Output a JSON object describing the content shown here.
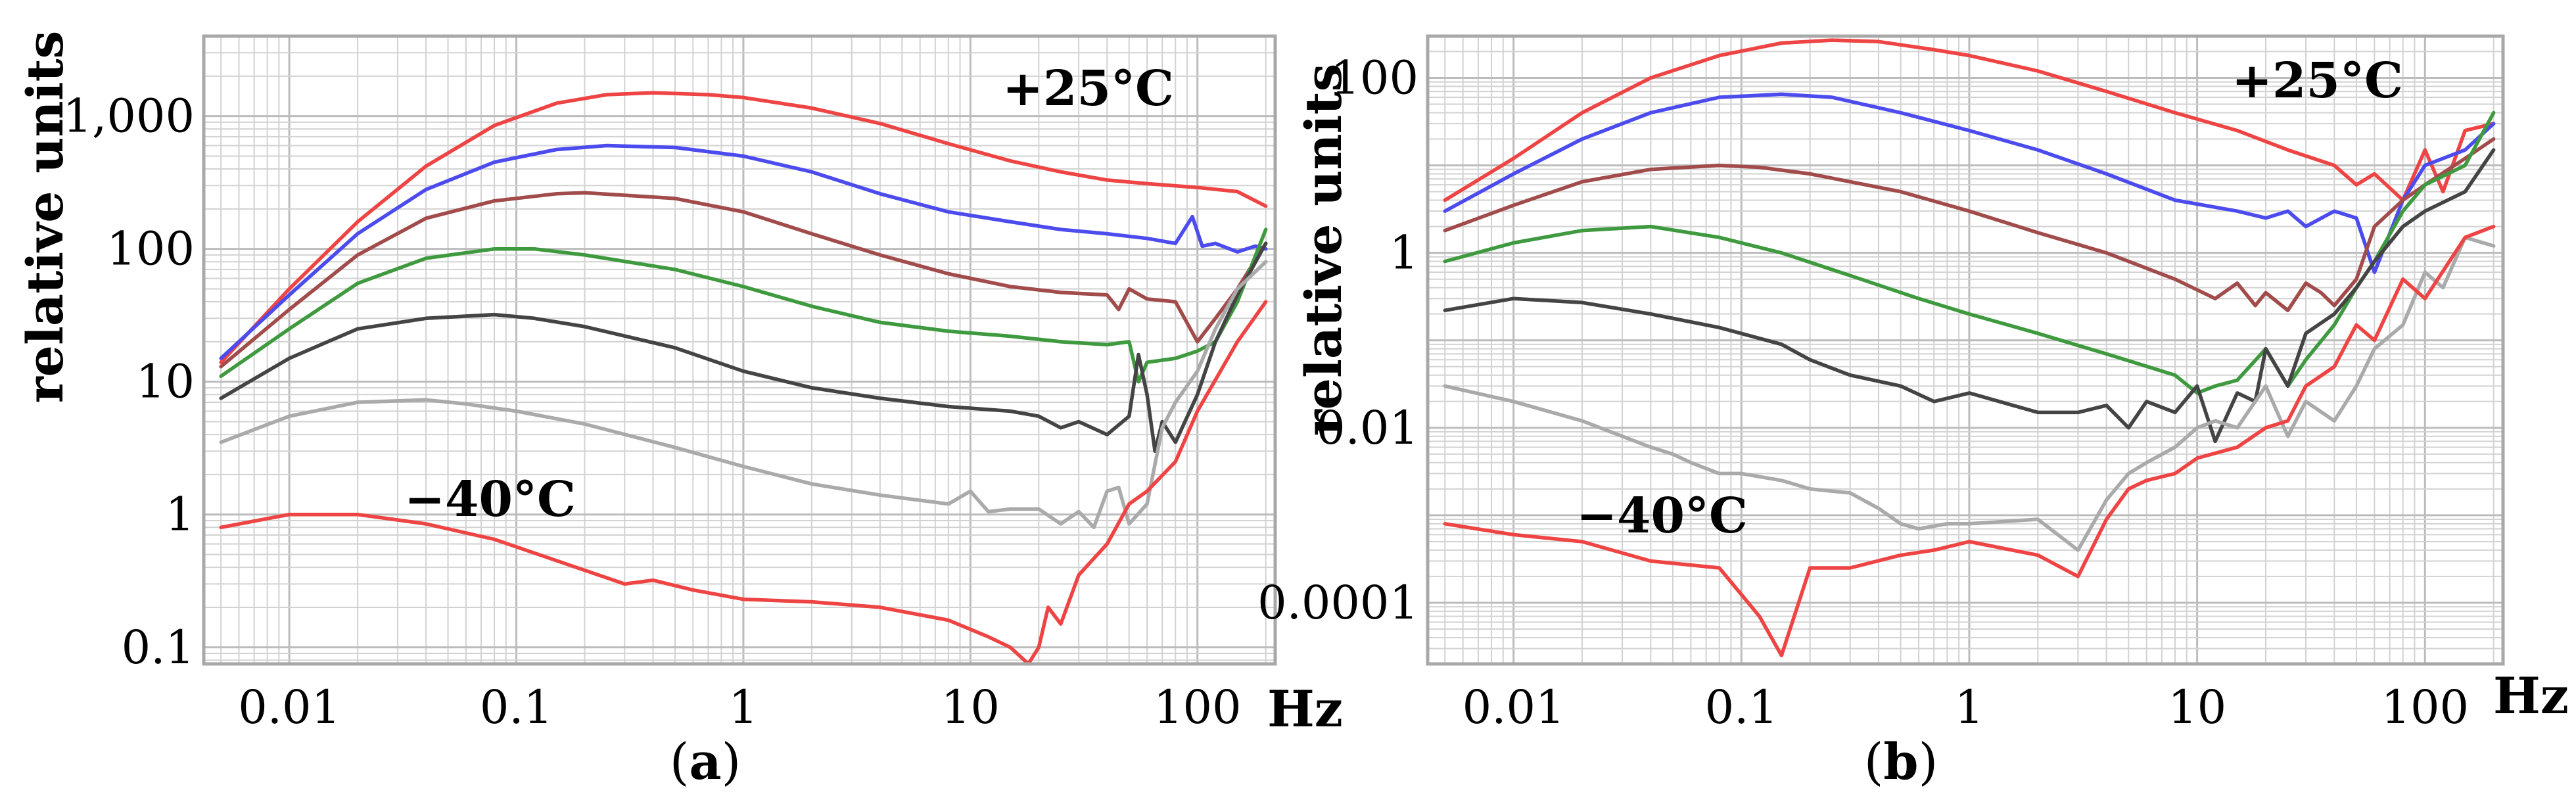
{
  "chart_data": [
    {
      "panel": "(a)",
      "panel_letter": "a",
      "type": "line",
      "xscale": "log",
      "yscale": "log",
      "xlim": [
        0.0042,
        220
      ],
      "ylim": [
        0.075,
        4000
      ],
      "ylabel": "relative units",
      "x_unit_label": "Hz",
      "xticks": [
        0.01,
        0.1,
        1,
        10,
        100
      ],
      "xtick_labels": [
        "0.01",
        "0.1",
        "1",
        "10",
        "100"
      ],
      "yticks": [
        0.1,
        1,
        10,
        100,
        1000
      ],
      "ytick_labels": [
        "0.1",
        "1",
        "10",
        "100",
        "1,000"
      ],
      "grid": true,
      "annotations": [
        {
          "text": "+25°C",
          "x": 35,
          "y": 1600
        },
        {
          "text": "−40°C",
          "x": 0.027,
          "y": 2.0
        }
      ],
      "series": [
        {
          "color": "#ee4444",
          "x": [
            0.005,
            0.01,
            0.02,
            0.04,
            0.08,
            0.15,
            0.25,
            0.4,
            0.7,
            1,
            2,
            4,
            8,
            15,
            25,
            40,
            60,
            100,
            150,
            200
          ],
          "y": [
            14,
            50,
            160,
            420,
            850,
            1250,
            1450,
            1500,
            1450,
            1380,
            1150,
            880,
            620,
            460,
            380,
            330,
            310,
            290,
            270,
            210
          ]
        },
        {
          "color": "#4b4bee",
          "x": [
            0.005,
            0.01,
            0.02,
            0.04,
            0.08,
            0.15,
            0.25,
            0.5,
            1,
            2,
            4,
            8,
            15,
            25,
            40,
            60,
            80,
            95,
            105,
            120,
            150,
            180,
            200
          ],
          "y": [
            15,
            45,
            130,
            280,
            450,
            560,
            600,
            580,
            500,
            380,
            260,
            190,
            160,
            140,
            130,
            120,
            110,
            175,
            105,
            110,
            95,
            105,
            100
          ]
        },
        {
          "color": "#a14b4b",
          "x": [
            0.005,
            0.01,
            0.02,
            0.04,
            0.08,
            0.15,
            0.2,
            0.5,
            1,
            2,
            4,
            8,
            15,
            25,
            40,
            45,
            50,
            60,
            80,
            100,
            120,
            150,
            200
          ],
          "y": [
            13,
            35,
            90,
            170,
            230,
            260,
            265,
            240,
            190,
            130,
            90,
            65,
            52,
            47,
            45,
            35,
            50,
            42,
            40,
            20,
            30,
            50,
            110
          ]
        },
        {
          "color": "#3f9a3f",
          "x": [
            0.005,
            0.01,
            0.02,
            0.04,
            0.08,
            0.12,
            0.2,
            0.5,
            1,
            2,
            4,
            8,
            15,
            25,
            40,
            50,
            55,
            60,
            80,
            100,
            120,
            150,
            200
          ],
          "y": [
            11,
            25,
            55,
            85,
            100,
            100,
            90,
            70,
            52,
            37,
            28,
            24,
            22,
            20,
            19,
            20,
            10,
            14,
            15,
            17,
            20,
            40,
            140
          ]
        },
        {
          "color": "#444444",
          "x": [
            0.005,
            0.01,
            0.02,
            0.04,
            0.08,
            0.12,
            0.2,
            0.5,
            1,
            2,
            4,
            8,
            15,
            20,
            25,
            30,
            40,
            50,
            55,
            60,
            65,
            70,
            80,
            100,
            120,
            150,
            200
          ],
          "y": [
            7.5,
            15,
            25,
            30,
            32,
            30,
            26,
            18,
            12,
            9,
            7.5,
            6.5,
            6,
            5.5,
            4.5,
            5,
            4,
            5.5,
            16,
            8,
            3,
            5,
            3.5,
            8,
            20,
            45,
            110
          ]
        },
        {
          "color": "#aaaaaa",
          "x": [
            0.005,
            0.01,
            0.02,
            0.04,
            0.06,
            0.1,
            0.2,
            0.5,
            1,
            2,
            4,
            8,
            10,
            12,
            15,
            20,
            25,
            30,
            35,
            40,
            45,
            50,
            60,
            70,
            80,
            100,
            120,
            150,
            200
          ],
          "y": [
            3.5,
            5.5,
            7,
            7.3,
            6.8,
            6,
            4.8,
            3.2,
            2.3,
            1.7,
            1.4,
            1.2,
            1.5,
            1.05,
            1.1,
            1.1,
            0.85,
            1.05,
            0.8,
            1.5,
            1.6,
            0.85,
            1.2,
            4.5,
            7,
            12,
            25,
            50,
            80
          ]
        },
        {
          "color": "#ee4444",
          "x": [
            0.005,
            0.01,
            0.02,
            0.04,
            0.08,
            0.15,
            0.3,
            0.4,
            0.6,
            1,
            2,
            4,
            8,
            12,
            15,
            18,
            20,
            22,
            25,
            30,
            40,
            50,
            60,
            80,
            100,
            150,
            200
          ],
          "y": [
            0.8,
            1.0,
            1.0,
            0.85,
            0.65,
            0.45,
            0.3,
            0.32,
            0.27,
            0.23,
            0.22,
            0.2,
            0.16,
            0.12,
            0.1,
            0.075,
            0.1,
            0.2,
            0.15,
            0.35,
            0.6,
            1.2,
            1.5,
            2.5,
            6,
            20,
            40
          ]
        }
      ]
    },
    {
      "panel": "(b)",
      "panel_letter": "b",
      "type": "line",
      "xscale": "log",
      "yscale": "log",
      "xlim": [
        0.0042,
        220
      ],
      "ylim": [
        2e-05,
        300
      ],
      "ylabel": "relative units",
      "x_unit_label": "Hz",
      "xticks": [
        0.01,
        0.1,
        1,
        10,
        100
      ],
      "xtick_labels": [
        "0.01",
        "0.1",
        "1",
        "10",
        "100"
      ],
      "yticks": [
        0.0001,
        0.01,
        1,
        100
      ],
      "ytick_labels": [
        "0.0001",
        "0.01",
        "1",
        "100"
      ],
      "grid": true,
      "annotations": [
        {
          "text": "+25°C",
          "x": 32,
          "y": 90
        },
        {
          "text": "−40°C",
          "x": 0.025,
          "y": 0.0011
        }
      ],
      "series": [
        {
          "color": "#ee4444",
          "x": [
            0.005,
            0.01,
            0.02,
            0.04,
            0.08,
            0.15,
            0.25,
            0.4,
            0.7,
            1,
            2,
            4,
            8,
            15,
            25,
            40,
            50,
            60,
            80,
            100,
            120,
            150,
            200
          ],
          "y": [
            4,
            12,
            40,
            100,
            180,
            250,
            270,
            260,
            210,
            180,
            120,
            70,
            40,
            25,
            15,
            10,
            6,
            8,
            4,
            15,
            5,
            25,
            30
          ]
        },
        {
          "color": "#4b4bee",
          "x": [
            0.005,
            0.01,
            0.02,
            0.04,
            0.08,
            0.15,
            0.25,
            0.5,
            1,
            2,
            4,
            8,
            15,
            20,
            25,
            30,
            40,
            50,
            60,
            80,
            100,
            150,
            200
          ],
          "y": [
            3,
            8,
            20,
            40,
            60,
            65,
            60,
            40,
            25,
            15,
            8,
            4,
            3,
            2.5,
            3,
            2,
            3,
            2.5,
            0.6,
            4,
            10,
            15,
            30
          ]
        },
        {
          "color": "#a14b4b",
          "x": [
            0.005,
            0.01,
            0.02,
            0.04,
            0.08,
            0.12,
            0.2,
            0.5,
            1,
            2,
            4,
            8,
            12,
            15,
            18,
            20,
            25,
            30,
            35,
            40,
            50,
            60,
            80,
            100,
            150,
            200
          ],
          "y": [
            1.8,
            3.5,
            6.5,
            9,
            10,
            9.5,
            8,
            5,
            3,
            1.7,
            1,
            0.5,
            0.3,
            0.45,
            0.25,
            0.35,
            0.22,
            0.45,
            0.35,
            0.25,
            0.5,
            2,
            4,
            6,
            12,
            20
          ]
        },
        {
          "color": "#3f9a3f",
          "x": [
            0.005,
            0.01,
            0.02,
            0.04,
            0.08,
            0.15,
            0.3,
            0.6,
            1,
            2,
            4,
            8,
            10,
            12,
            15,
            20,
            25,
            30,
            40,
            50,
            60,
            80,
            100,
            150,
            200
          ],
          "y": [
            0.8,
            1.3,
            1.8,
            2,
            1.5,
            1,
            0.55,
            0.3,
            0.2,
            0.12,
            0.07,
            0.04,
            0.025,
            0.03,
            0.035,
            0.08,
            0.03,
            0.06,
            0.15,
            0.4,
            0.8,
            3,
            6,
            10,
            40
          ]
        },
        {
          "color": "#444444",
          "x": [
            0.005,
            0.01,
            0.02,
            0.04,
            0.08,
            0.15,
            0.2,
            0.3,
            0.5,
            0.7,
            1,
            2,
            3,
            4,
            5,
            6,
            8,
            10,
            12,
            15,
            18,
            20,
            25,
            30,
            40,
            50,
            60,
            80,
            100,
            150,
            200
          ],
          "y": [
            0.22,
            0.3,
            0.27,
            0.2,
            0.14,
            0.09,
            0.06,
            0.04,
            0.03,
            0.02,
            0.025,
            0.015,
            0.015,
            0.018,
            0.01,
            0.02,
            0.015,
            0.03,
            0.007,
            0.025,
            0.02,
            0.08,
            0.03,
            0.12,
            0.2,
            0.4,
            0.8,
            2,
            3,
            5,
            15
          ]
        },
        {
          "color": "#aaaaaa",
          "x": [
            0.005,
            0.01,
            0.02,
            0.03,
            0.04,
            0.05,
            0.06,
            0.08,
            0.1,
            0.15,
            0.2,
            0.3,
            0.4,
            0.5,
            0.6,
            0.8,
            1,
            2,
            3,
            4,
            5,
            6,
            8,
            10,
            12,
            15,
            20,
            25,
            30,
            40,
            50,
            60,
            80,
            100,
            120,
            150,
            200
          ],
          "y": [
            0.03,
            0.02,
            0.012,
            0.008,
            0.006,
            0.005,
            0.004,
            0.003,
            0.003,
            0.0025,
            0.002,
            0.0018,
            0.0012,
            0.0008,
            0.0007,
            0.0008,
            0.0008,
            0.0009,
            0.0004,
            0.0015,
            0.003,
            0.004,
            0.006,
            0.01,
            0.012,
            0.01,
            0.03,
            0.008,
            0.02,
            0.012,
            0.03,
            0.08,
            0.15,
            0.6,
            0.4,
            1.5,
            1.2
          ]
        },
        {
          "color": "#ee4444",
          "x": [
            0.005,
            0.01,
            0.02,
            0.04,
            0.08,
            0.12,
            0.15,
            0.2,
            0.3,
            0.5,
            0.7,
            1,
            2,
            3,
            4,
            5,
            6,
            8,
            10,
            15,
            20,
            25,
            30,
            40,
            50,
            60,
            80,
            100,
            150,
            200
          ],
          "y": [
            0.0008,
            0.0006,
            0.0005,
            0.0003,
            0.00025,
            7e-05,
            2.5e-05,
            0.00025,
            0.00025,
            0.00035,
            0.0004,
            0.0005,
            0.00035,
            0.0002,
            0.0009,
            0.002,
            0.0025,
            0.003,
            0.0045,
            0.006,
            0.01,
            0.012,
            0.03,
            0.05,
            0.15,
            0.1,
            0.5,
            0.3,
            1.5,
            2
          ]
        }
      ]
    }
  ]
}
